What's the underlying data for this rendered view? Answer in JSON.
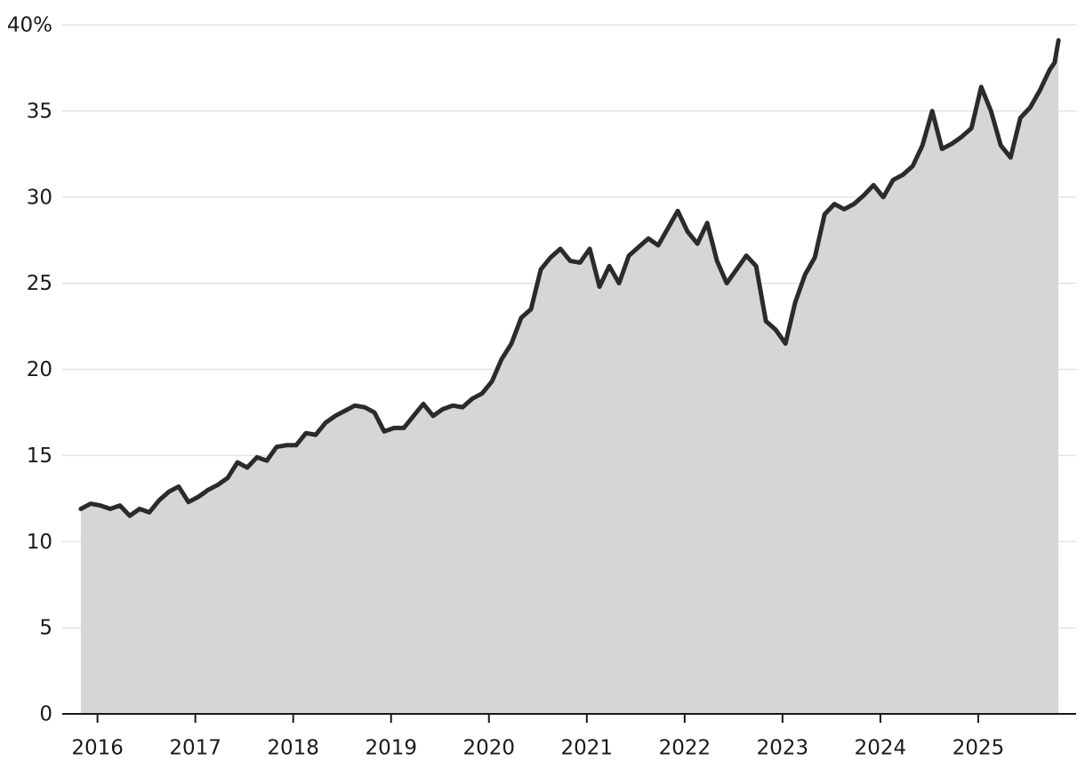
{
  "chart_data": {
    "type": "area",
    "x": [
      2015.83,
      2015.93,
      2016.03,
      2016.13,
      2016.23,
      2016.33,
      2016.43,
      2016.53,
      2016.63,
      2016.73,
      2016.83,
      2016.93,
      2017.03,
      2017.13,
      2017.23,
      2017.33,
      2017.43,
      2017.53,
      2017.63,
      2017.73,
      2017.83,
      2017.93,
      2018.03,
      2018.13,
      2018.23,
      2018.33,
      2018.43,
      2018.53,
      2018.63,
      2018.73,
      2018.83,
      2018.93,
      2019.03,
      2019.13,
      2019.23,
      2019.33,
      2019.43,
      2019.53,
      2019.63,
      2019.73,
      2019.83,
      2019.93,
      2020.03,
      2020.13,
      2020.23,
      2020.33,
      2020.43,
      2020.53,
      2020.63,
      2020.73,
      2020.83,
      2020.93,
      2021.03,
      2021.13,
      2021.23,
      2021.33,
      2021.43,
      2021.53,
      2021.63,
      2021.73,
      2021.83,
      2021.93,
      2022.03,
      2022.13,
      2022.23,
      2022.33,
      2022.43,
      2022.53,
      2022.63,
      2022.73,
      2022.83,
      2022.93,
      2023.03,
      2023.13,
      2023.23,
      2023.33,
      2023.43,
      2023.53,
      2023.63,
      2023.73,
      2023.83,
      2023.93,
      2024.03,
      2024.13,
      2024.23,
      2024.33,
      2024.43,
      2024.53,
      2024.63,
      2024.73,
      2024.83,
      2024.93,
      2025.03,
      2025.13,
      2025.23,
      2025.33,
      2025.43,
      2025.53,
      2025.63,
      2025.73,
      2025.78,
      2025.82
    ],
    "values": [
      11.9,
      12.2,
      12.1,
      11.9,
      12.1,
      11.5,
      11.9,
      11.7,
      12.4,
      12.9,
      13.2,
      12.3,
      12.6,
      13.0,
      13.3,
      13.7,
      14.6,
      14.3,
      14.9,
      14.7,
      15.5,
      15.6,
      15.6,
      16.3,
      16.2,
      16.9,
      17.3,
      17.6,
      17.9,
      17.8,
      17.5,
      16.4,
      16.6,
      16.6,
      17.3,
      18.0,
      17.3,
      17.7,
      17.9,
      17.8,
      18.3,
      18.6,
      19.3,
      20.6,
      21.5,
      23.0,
      23.5,
      25.8,
      26.5,
      27.0,
      26.3,
      26.2,
      27.0,
      24.8,
      26.0,
      25.0,
      26.6,
      27.1,
      27.6,
      27.2,
      28.2,
      29.2,
      28.0,
      27.3,
      28.5,
      26.3,
      25.0,
      25.8,
      26.6,
      26.0,
      22.8,
      22.3,
      21.5,
      23.9,
      25.5,
      26.5,
      29.0,
      29.6,
      29.3,
      29.6,
      30.1,
      30.7,
      30.0,
      31.0,
      31.3,
      31.8,
      33.0,
      35.0,
      32.8,
      33.1,
      33.5,
      34.0,
      36.4,
      35.0,
      33.0,
      32.3,
      34.6,
      35.2,
      36.2,
      37.4,
      37.8,
      39.1
    ],
    "color": "#2b2b2b",
    "fill": "#d6d6d6",
    "xlim": [
      2015.64,
      2026.0
    ],
    "xticks": [
      2016,
      2017,
      2018,
      2019,
      2020,
      2021,
      2022,
      2023,
      2024,
      2025
    ],
    "ylim": [
      0,
      40
    ],
    "yticks": [
      0,
      5,
      10,
      15,
      20,
      25,
      30,
      35,
      {
        "value": 40,
        "label": "40%"
      }
    ],
    "grid": true
  }
}
